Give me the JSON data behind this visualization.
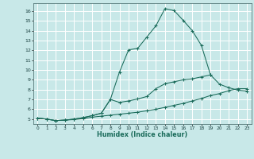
{
  "xlabel": "Humidex (Indice chaleur)",
  "bg_color": "#c8e8e8",
  "grid_color": "#ffffff",
  "line_color": "#1a6b5a",
  "x": [
    0,
    1,
    2,
    3,
    4,
    5,
    6,
    7,
    8,
    9,
    10,
    11,
    12,
    13,
    14,
    15,
    16,
    17,
    18,
    19,
    20,
    21,
    22,
    23
  ],
  "line1": [
    5.1,
    5.0,
    4.85,
    4.9,
    4.95,
    5.05,
    5.2,
    5.3,
    5.4,
    5.5,
    5.6,
    5.7,
    5.85,
    6.0,
    6.2,
    6.4,
    6.6,
    6.85,
    7.1,
    7.4,
    7.6,
    7.9,
    8.1,
    8.1
  ],
  "line2": [
    5.1,
    5.0,
    4.85,
    4.9,
    5.0,
    5.15,
    5.35,
    5.6,
    7.0,
    6.7,
    6.85,
    7.05,
    7.3,
    8.1,
    8.6,
    8.8,
    9.0,
    9.1,
    9.3,
    9.5,
    8.55,
    8.2,
    7.95,
    7.85
  ],
  "line3_x": [
    0,
    1,
    2,
    3,
    4,
    5,
    6,
    7,
    8,
    9,
    10,
    11,
    12,
    13,
    14,
    15,
    16,
    17,
    18,
    19
  ],
  "line3_y": [
    5.1,
    5.0,
    4.85,
    4.9,
    5.0,
    5.15,
    5.35,
    5.6,
    7.0,
    9.8,
    12.05,
    12.2,
    13.35,
    14.5,
    16.25,
    16.05,
    15.05,
    14.0,
    12.5,
    9.5
  ],
  "xlim": [
    -0.5,
    23.5
  ],
  "ylim": [
    4.5,
    16.8
  ],
  "xticks": [
    0,
    1,
    2,
    3,
    4,
    5,
    6,
    7,
    8,
    9,
    10,
    11,
    12,
    13,
    14,
    15,
    16,
    17,
    18,
    19,
    20,
    21,
    22,
    23
  ],
  "yticks": [
    5,
    6,
    7,
    8,
    9,
    10,
    11,
    12,
    13,
    14,
    15,
    16
  ]
}
